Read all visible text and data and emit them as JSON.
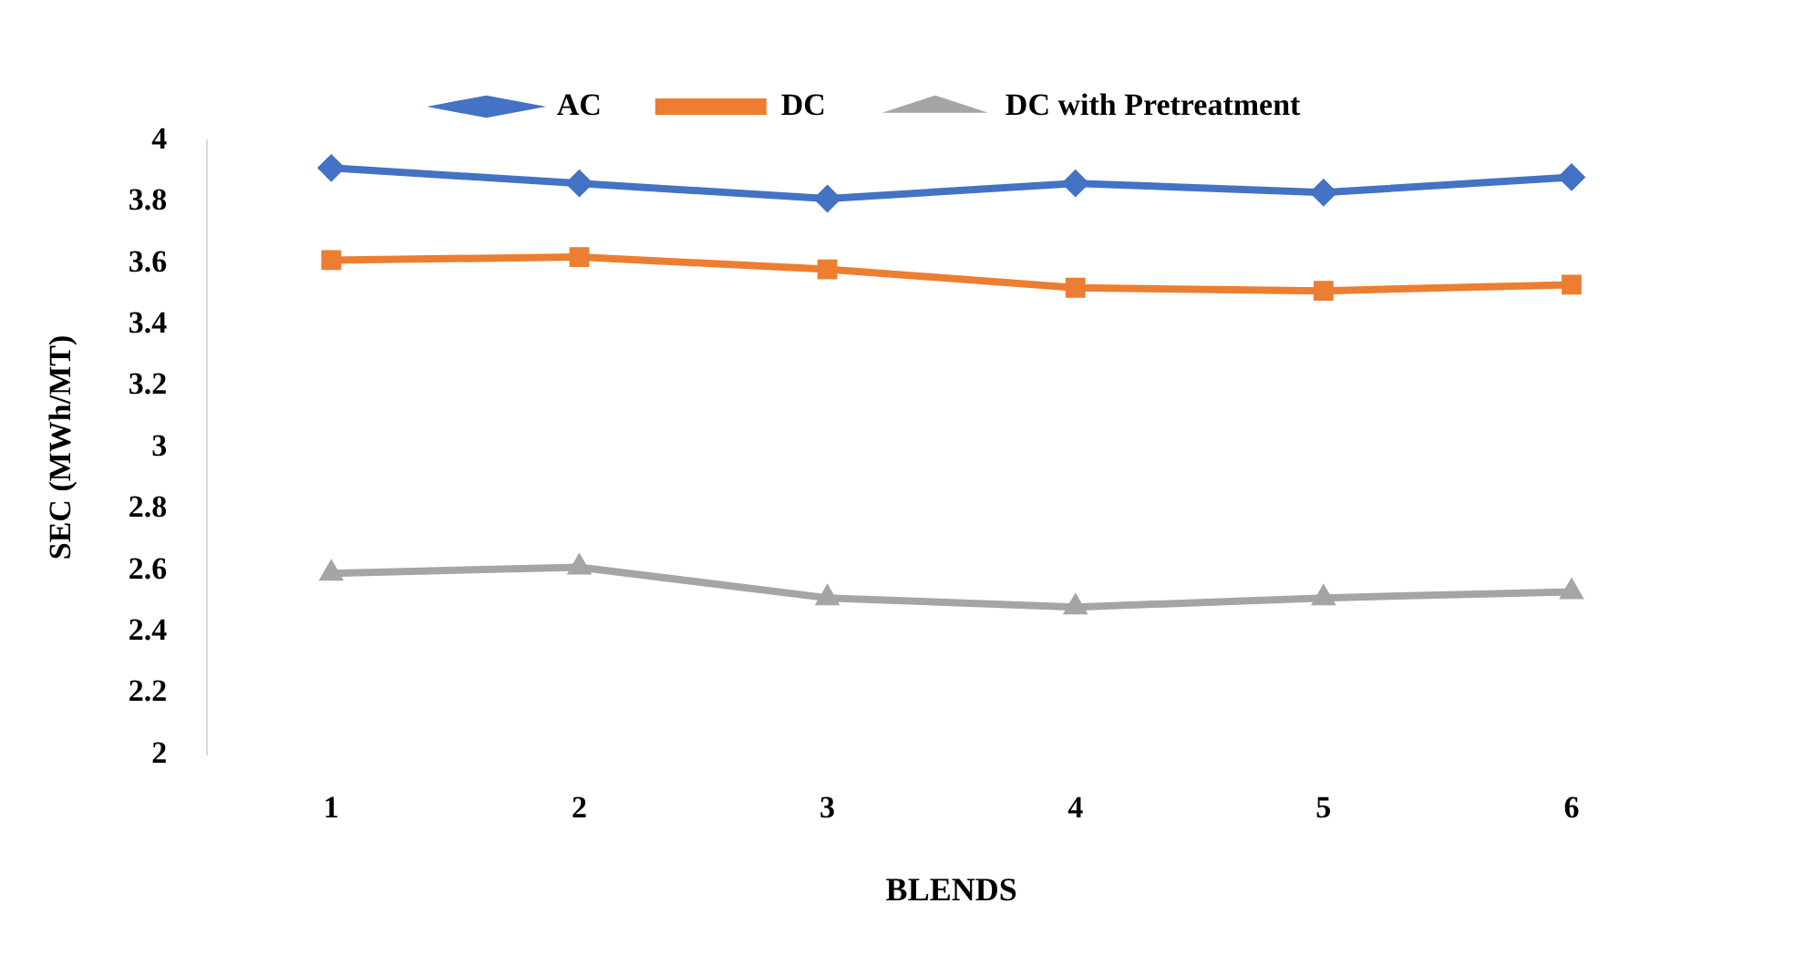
{
  "chart_data": {
    "type": "line",
    "xlabel": "BLENDS",
    "ylabel": "SEC (MWh/MT)",
    "categories": [
      "1",
      "2",
      "3",
      "4",
      "5",
      "6"
    ],
    "series": [
      {
        "name": "AC",
        "color": "#4472c4",
        "marker": "diamond",
        "values": [
          3.91,
          3.86,
          3.81,
          3.86,
          3.83,
          3.88
        ]
      },
      {
        "name": "DC",
        "color": "#ed7d31",
        "marker": "square",
        "values": [
          3.61,
          3.62,
          3.58,
          3.52,
          3.51,
          3.53
        ]
      },
      {
        "name": "DC with Pretreatment",
        "color": "#a5a5a5",
        "marker": "triangle",
        "values": [
          2.59,
          2.61,
          2.51,
          2.48,
          2.51,
          2.53
        ]
      }
    ],
    "ylim": [
      2,
      4
    ],
    "yticks": [
      2,
      2.2,
      2.4,
      2.6,
      2.8,
      3,
      3.2,
      3.4,
      3.6,
      3.8,
      4
    ],
    "grid": false,
    "legend": "top"
  }
}
